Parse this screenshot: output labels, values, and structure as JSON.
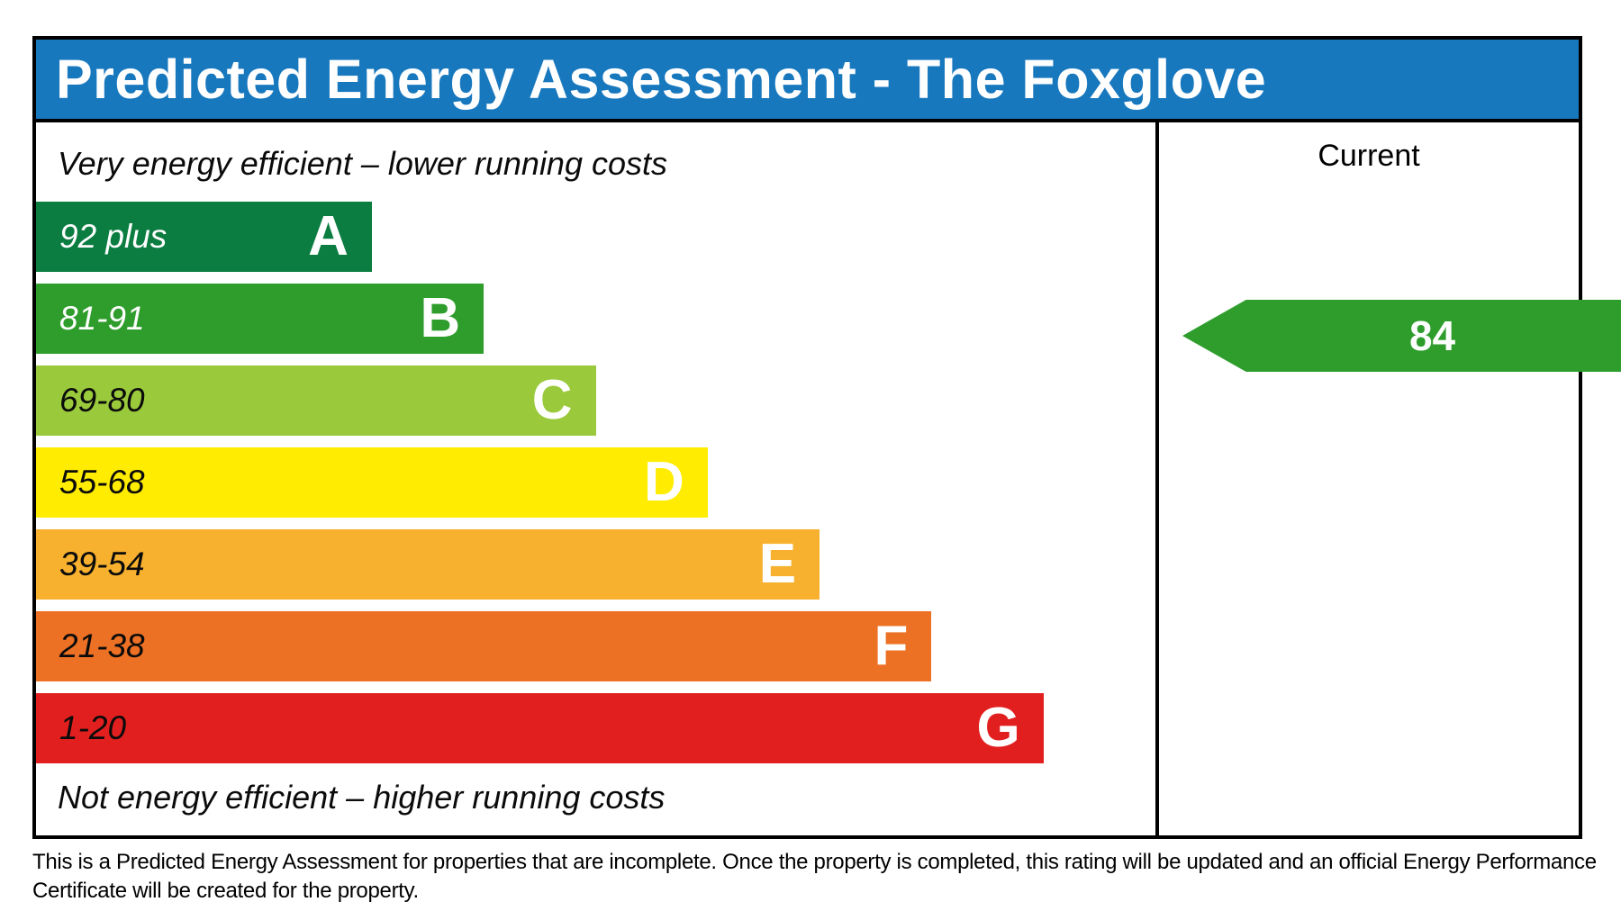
{
  "title": "Predicted Energy Assessment - The Foxglove",
  "colors": {
    "header_bg": "#1878be",
    "header_text": "#ffffff",
    "border": "#000000"
  },
  "scale": {
    "note_top": "Very energy efficient – lower running costs",
    "note_bottom": "Not energy efficient – higher running costs",
    "bands": [
      {
        "range": "92 plus",
        "letter": "A",
        "color": "#0b7d41",
        "range_color": "#ffffff",
        "width": "30%"
      },
      {
        "range": "81-91",
        "letter": "B",
        "color": "#2e9d2c",
        "range_color": "#ffffff",
        "width": "40%"
      },
      {
        "range": "69-80",
        "letter": "C",
        "color": "#9aca3c",
        "range_color": "#0b0b0b",
        "width": "50%"
      },
      {
        "range": "55-68",
        "letter": "D",
        "color": "#ffec00",
        "range_color": "#0b0b0b",
        "width": "60%"
      },
      {
        "range": "39-54",
        "letter": "E",
        "color": "#f7b12e",
        "range_color": "#0b0b0b",
        "width": "70%"
      },
      {
        "range": "21-38",
        "letter": "F",
        "color": "#ed7124",
        "range_color": "#0b0b0b",
        "width": "80%"
      },
      {
        "range": "1-20",
        "letter": "G",
        "color": "#e21f1f",
        "range_color": "#0b0b0b",
        "width": "90%"
      }
    ]
  },
  "rating": {
    "column_label": "Current",
    "value": "84",
    "arrow_color": "#2e9d2c"
  },
  "footer": "This is a Predicted Energy Assessment for properties that are incomplete. Once the property is completed, this rating will be updated and an official Energy Performance Certificate will be created for the property.",
  "chart_data": {
    "type": "bar",
    "title": "Predicted Energy Assessment - The Foxglove",
    "categories": [
      "A",
      "B",
      "C",
      "D",
      "E",
      "F",
      "G"
    ],
    "band_ranges": [
      "92 plus",
      "81-91",
      "69-80",
      "55-68",
      "39-54",
      "21-38",
      "1-20"
    ],
    "values": [
      30,
      40,
      50,
      60,
      70,
      80,
      90
    ],
    "value_unit": "relative bar length, percent of scale panel width",
    "band_colors": [
      "#0b7d41",
      "#2e9d2c",
      "#9aca3c",
      "#ffec00",
      "#f7b12e",
      "#ed7124",
      "#e21f1f"
    ],
    "current_rating": 84,
    "current_band": "B",
    "xlabel": "",
    "ylabel": "",
    "legend_position": "none",
    "grid": false,
    "annotations": [
      "Very energy efficient – lower running costs",
      "Not energy efficient – higher running costs",
      "Current"
    ]
  }
}
